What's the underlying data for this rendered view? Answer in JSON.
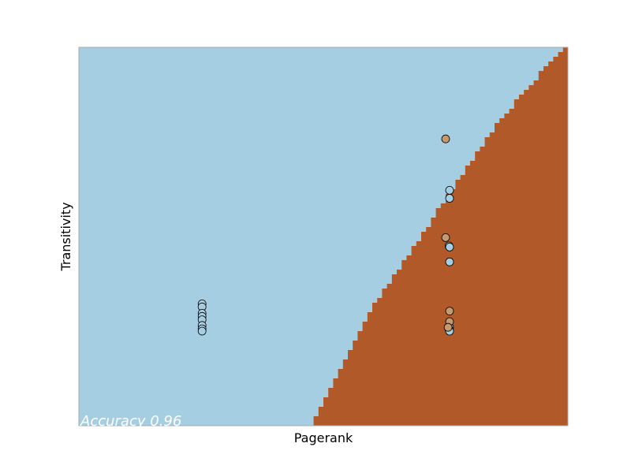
{
  "chart_data": {
    "type": "scatter",
    "title": "",
    "xlabel": "Pagerank",
    "ylabel": "Transitivity",
    "xlim": [
      0,
      1
    ],
    "ylim": [
      0,
      1
    ],
    "grid": false,
    "show_ticks": false,
    "annotation": "Accuracy 0.96",
    "colors": {
      "region_class_0": "#a6cee3",
      "region_class_1": "#b15928",
      "point_class_0": "#a6cee3",
      "point_class_1": "#c49a6c",
      "point_edge": "#000000",
      "annotation": "#ffffff",
      "frame": "#aaaaaa"
    },
    "decision_boundary": [
      {
        "x": 0.473,
        "y": 0.0
      },
      {
        "x": 0.59,
        "y": 0.29
      },
      {
        "x": 0.73,
        "y": 0.56
      },
      {
        "x": 0.85,
        "y": 0.79
      },
      {
        "x": 0.99,
        "y": 1.0
      }
    ],
    "series": [
      {
        "class": 0,
        "points": [
          {
            "x": 0.252,
            "y": 0.322
          },
          {
            "x": 0.252,
            "y": 0.314
          },
          {
            "x": 0.252,
            "y": 0.297
          },
          {
            "x": 0.252,
            "y": 0.289
          },
          {
            "x": 0.252,
            "y": 0.28
          },
          {
            "x": 0.252,
            "y": 0.265
          },
          {
            "x": 0.252,
            "y": 0.256
          },
          {
            "x": 0.252,
            "y": 0.25
          },
          {
            "x": 0.758,
            "y": 0.622
          },
          {
            "x": 0.758,
            "y": 0.601
          },
          {
            "x": 0.757,
            "y": 0.475
          },
          {
            "x": 0.758,
            "y": 0.472
          },
          {
            "x": 0.758,
            "y": 0.433
          },
          {
            "x": 0.758,
            "y": 0.26
          },
          {
            "x": 0.757,
            "y": 0.255
          },
          {
            "x": 0.758,
            "y": 0.25
          }
        ]
      },
      {
        "class": 1,
        "points": [
          {
            "x": 0.75,
            "y": 0.758
          },
          {
            "x": 0.75,
            "y": 0.497
          },
          {
            "x": 0.758,
            "y": 0.303
          },
          {
            "x": 0.758,
            "y": 0.275
          },
          {
            "x": 0.755,
            "y": 0.26
          }
        ]
      }
    ]
  }
}
